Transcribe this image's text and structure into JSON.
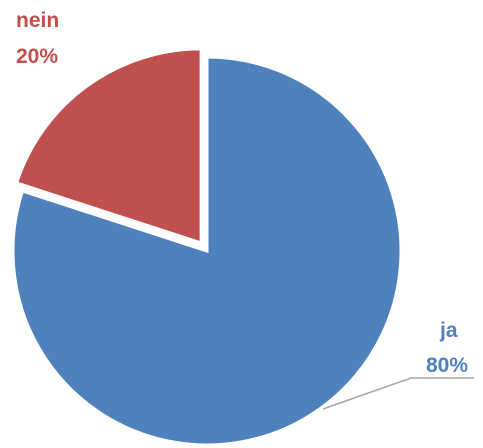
{
  "chart_data": {
    "type": "pie",
    "title": "",
    "start_angle_deg": 0,
    "exploded_slice": "nein",
    "slices": [
      {
        "name": "ja",
        "value": 80,
        "label_pct": "80%",
        "color": "#4f81bd"
      },
      {
        "name": "nein",
        "value": 20,
        "label_pct": "20%",
        "color": "#c0504d"
      }
    ],
    "leader_line_color": "#a6a6a6"
  }
}
